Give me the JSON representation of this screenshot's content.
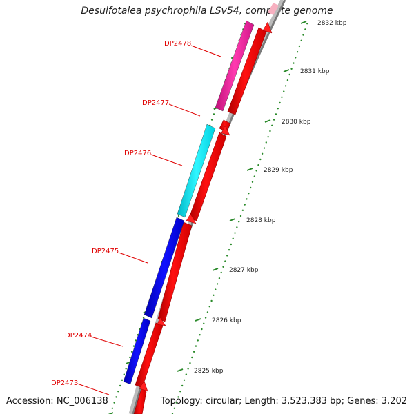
{
  "title": "Desulfotalea psychrophila LSv54, complete genome",
  "footer": {
    "accession": "Accession: NC_006138",
    "stats": "Topology: circular; Length: 3,523,383 bp; Genes: 3,202"
  },
  "colors": {
    "backbone": "#888888",
    "cds_forward": "#ff0000",
    "tick": "#2a8a2a",
    "label": "#e00000"
  },
  "scale_ticks": [
    {
      "label": "2825 kbp"
    },
    {
      "label": "2826 kbp"
    },
    {
      "label": "2827 kbp"
    },
    {
      "label": "2828 kbp"
    },
    {
      "label": "2829 kbp"
    },
    {
      "label": "2830 kbp"
    },
    {
      "label": "2831 kbp"
    },
    {
      "label": "2832 kbp"
    }
  ],
  "genes": [
    {
      "label": "DP2473",
      "color": "#ff0000"
    },
    {
      "label": "DP2474",
      "color": "#0000ee"
    },
    {
      "label": "DP2475",
      "color": "#0000ee"
    },
    {
      "label": "DP2476",
      "color": "#00e5f0"
    },
    {
      "label": "DP2477",
      "color": "#ff0000"
    },
    {
      "label": "DP2478",
      "color": "#ee1d9a"
    }
  ]
}
